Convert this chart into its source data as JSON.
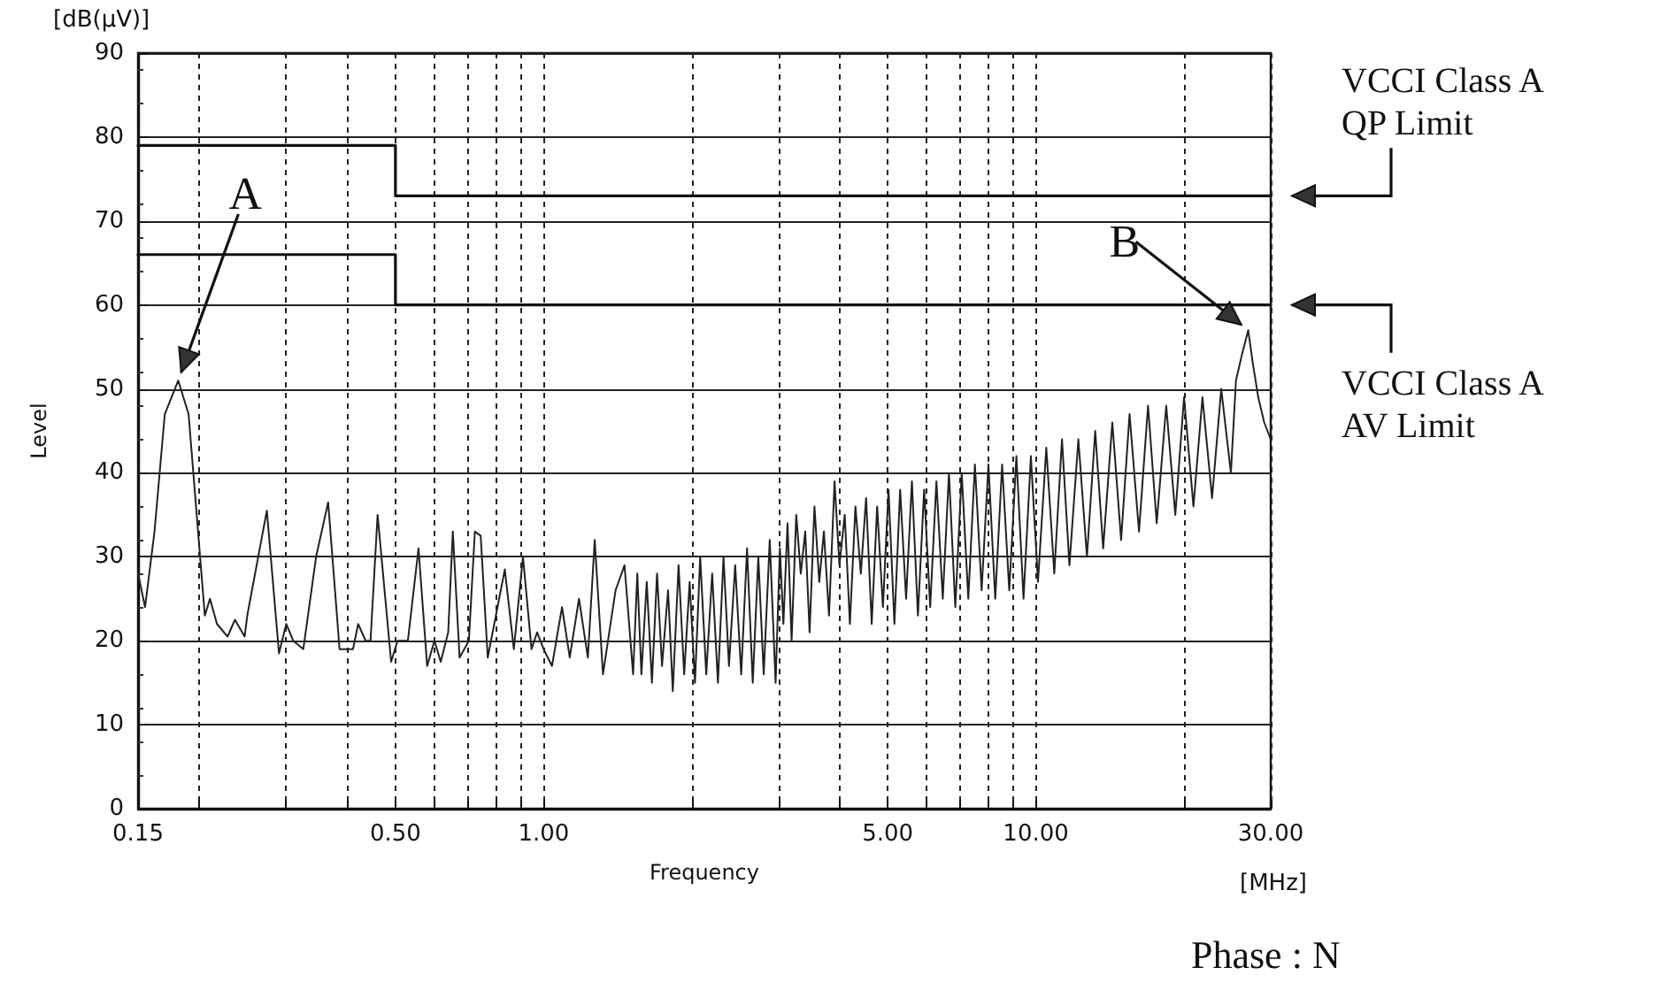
{
  "chart_data": {
    "type": "line",
    "xlabel": "Frequency",
    "ylabel": "Level",
    "log": "x",
    "grid": true,
    "legend": "right",
    "marker": "none",
    "xlim": [
      0.15,
      30
    ],
    "ylim": [
      0,
      90
    ],
    "xticks": [
      0.15,
      {
        "value": 0.2,
        "label": null
      },
      {
        "value": 0.3,
        "label": null
      },
      {
        "value": 0.4,
        "label": null
      },
      {
        "value": 0.5,
        "label": "0.50"
      },
      {
        "value": 0.6,
        "label": null
      },
      {
        "value": 0.7,
        "label": null
      },
      {
        "value": 0.8,
        "label": null
      },
      {
        "value": 0.9,
        "label": null
      },
      {
        "value": 1,
        "label": "1.00"
      },
      {
        "value": 2,
        "label": null
      },
      {
        "value": 3,
        "label": null
      },
      {
        "value": 4,
        "label": null
      },
      {
        "value": 5,
        "label": "5.00"
      },
      {
        "value": 6,
        "label": null
      },
      {
        "value": 7,
        "label": null
      },
      {
        "value": 8,
        "label": null
      },
      {
        "value": 9,
        "label": null
      },
      {
        "value": 10,
        "label": "10.00"
      },
      {
        "value": 20,
        "label": null
      },
      {
        "value": 30,
        "label": "30.00"
      }
    ],
    "yticks": [
      0,
      10,
      20,
      30,
      40,
      50,
      60,
      70,
      80,
      90
    ],
    "annotations": [
      "[dB(μV)]",
      "[MHz]",
      "Phase : N",
      {
        "text": "A",
        "x": 0.181,
        "y": 51
      },
      {
        "text": "B",
        "x": 27,
        "y": 57
      }
    ],
    "series": [
      {
        "color": "#222222",
        "x": [
          0.15,
          0.155,
          0.162,
          0.17,
          0.181,
          0.19,
          0.205,
          0.21,
          0.217,
          0.228,
          0.236,
          0.247,
          0.25,
          0.274,
          0.29,
          0.3,
          0.31,
          0.325,
          0.345,
          0.365,
          0.385,
          0.41,
          0.42,
          0.435,
          0.445,
          0.46,
          0.49,
          0.505,
          0.53,
          0.557,
          0.58,
          0.6,
          0.618,
          0.64,
          0.654,
          0.675,
          0.705,
          0.725,
          0.745,
          0.77,
          0.834,
          0.87,
          0.908,
          0.945,
          0.97,
          1.0,
          1.04,
          1.09,
          1.13,
          1.18,
          1.23,
          1.27,
          1.32,
          1.4,
          1.46,
          1.52,
          1.55,
          1.58,
          1.62,
          1.66,
          1.7,
          1.74,
          1.79,
          1.83,
          1.88,
          1.93,
          1.98,
          2.03,
          2.08,
          2.14,
          2.2,
          2.26,
          2.32,
          2.38,
          2.45,
          2.52,
          2.59,
          2.66,
          2.73,
          2.8,
          2.88,
          2.96,
          3.02,
          3.07,
          3.13,
          3.19,
          3.26,
          3.33,
          3.4,
          3.47,
          3.55,
          3.63,
          3.71,
          3.8,
          3.9,
          3.99,
          4.09,
          4.19,
          4.3,
          4.41,
          4.52,
          4.64,
          4.76,
          4.89,
          5.02,
          5.16,
          5.3,
          5.45,
          5.6,
          5.76,
          5.93,
          6.1,
          6.28,
          6.47,
          6.66,
          6.86,
          7.07,
          7.29,
          7.52,
          7.76,
          8.01,
          8.27,
          8.54,
          8.83,
          9.13,
          9.44,
          9.77,
          10.1,
          10.5,
          10.9,
          11.3,
          11.7,
          12.2,
          12.7,
          13.2,
          13.7,
          14.3,
          14.9,
          15.5,
          16.2,
          16.9,
          17.6,
          18.4,
          19.2,
          20,
          20.9,
          21.8,
          22.8,
          23.8,
          24.9,
          25.5,
          26.2,
          27,
          27.6,
          28.3,
          29.1,
          30
        ],
        "values": [
          28,
          24,
          33,
          47,
          51,
          47,
          23,
          25,
          22,
          20.5,
          22.5,
          20.5,
          23,
          35.5,
          18.5,
          22,
          20,
          19,
          30,
          36.5,
          19,
          19,
          22,
          20,
          20,
          35,
          17.5,
          20,
          20,
          31,
          17,
          20,
          17.5,
          21,
          33,
          18,
          20,
          33,
          32.5,
          18,
          28.5,
          19,
          30,
          19,
          21,
          19,
          17,
          24,
          18,
          25,
          18,
          32,
          16,
          26,
          29,
          16,
          28,
          16,
          27,
          15,
          28,
          17,
          26,
          14,
          29,
          16,
          27,
          15,
          30,
          16,
          28,
          15,
          30,
          17,
          29,
          16,
          31,
          15,
          30,
          16,
          32,
          15,
          31,
          22,
          34,
          20,
          35,
          28,
          33,
          21,
          36,
          27,
          33,
          23,
          39,
          29,
          35,
          22,
          36,
          28,
          37,
          22,
          36,
          24,
          38,
          22,
          38,
          25,
          39,
          23,
          38,
          24,
          39,
          25,
          40,
          24,
          40,
          25,
          41,
          26,
          41,
          25,
          41,
          26,
          42,
          25,
          42,
          27,
          43,
          28,
          44,
          29,
          44,
          30,
          45,
          31,
          46,
          32,
          47,
          33,
          48,
          34,
          48,
          35,
          49,
          36,
          49,
          37,
          50,
          40,
          51,
          54,
          57,
          53,
          49,
          46,
          44
        ]
      },
      {
        "name": "VCCI Class A QP Limit",
        "color": "#111111",
        "x": [
          0.15,
          0.5,
          0.5,
          30
        ],
        "values": [
          79,
          79,
          73,
          73
        ]
      },
      {
        "name": "VCCI Class A AV Limit",
        "color": "#111111",
        "x": [
          0.15,
          0.5,
          0.5,
          30
        ],
        "values": [
          66,
          66,
          60,
          60
        ]
      }
    ]
  }
}
